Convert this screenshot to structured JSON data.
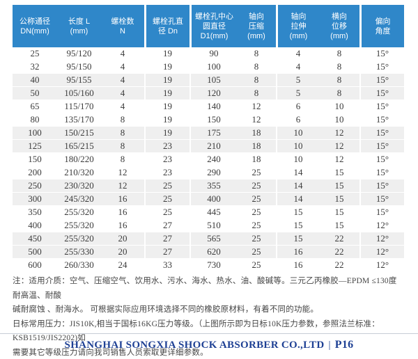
{
  "colors": {
    "header_bg": "#2F87C9",
    "alt_row": "#EFEFEF",
    "footer_text": "#1E4094",
    "footer_line": "#C6CCD6"
  },
  "table": {
    "headers": [
      {
        "id": "nominal-diameter",
        "lines": [
          "公称通径",
          "DN(mm)"
        ]
      },
      {
        "id": "length",
        "lines": [
          "长度 L",
          "(mm)"
        ]
      },
      {
        "id": "bolt-count",
        "lines": [
          "螺栓数",
          "N"
        ]
      },
      {
        "id": "bolt-hole-diameter",
        "lines": [
          "螺栓孔直",
          "径 Dn"
        ]
      },
      {
        "id": "bolt-circle-diameter",
        "lines": [
          "螺栓孔中心",
          "圆直径",
          "D1(mm)"
        ]
      },
      {
        "id": "axial-compression",
        "lines": [
          "轴向",
          "压缩",
          "(mm)"
        ]
      },
      {
        "id": "axial-extension",
        "lines": [
          "轴向",
          "拉伸",
          "(mm)"
        ]
      },
      {
        "id": "lateral-displacement",
        "lines": [
          "横向",
          "位移",
          "(mm)"
        ]
      },
      {
        "id": "deflection-angle",
        "lines": [
          "偏向",
          "角度"
        ]
      }
    ],
    "rows": [
      [
        "25",
        "95/120",
        "4",
        "19",
        "90",
        "8",
        "4",
        "8",
        "15°"
      ],
      [
        "32",
        "95/150",
        "4",
        "19",
        "100",
        "8",
        "4",
        "8",
        "15°"
      ],
      [
        "40",
        "95/155",
        "4",
        "19",
        "105",
        "8",
        "5",
        "8",
        "15°"
      ],
      [
        "50",
        "105/160",
        "4",
        "19",
        "120",
        "8",
        "5",
        "8",
        "15°"
      ],
      [
        "65",
        "115/170",
        "4",
        "19",
        "140",
        "12",
        "6",
        "10",
        "15°"
      ],
      [
        "80",
        "135/170",
        "8",
        "19",
        "150",
        "12",
        "6",
        "10",
        "15°"
      ],
      [
        "100",
        "150/215",
        "8",
        "19",
        "175",
        "18",
        "10",
        "12",
        "15°"
      ],
      [
        "125",
        "165/215",
        "8",
        "23",
        "210",
        "18",
        "10",
        "12",
        "15°"
      ],
      [
        "150",
        "180/220",
        "8",
        "23",
        "240",
        "18",
        "10",
        "12",
        "15°"
      ],
      [
        "200",
        "210/320",
        "12",
        "23",
        "290",
        "25",
        "14",
        "15",
        "15°"
      ],
      [
        "250",
        "230/320",
        "12",
        "25",
        "355",
        "25",
        "14",
        "15",
        "15°"
      ],
      [
        "300",
        "245/320",
        "16",
        "25",
        "400",
        "25",
        "14",
        "15",
        "15°"
      ],
      [
        "350",
        "255/320",
        "16",
        "25",
        "445",
        "25",
        "15",
        "15",
        "15°"
      ],
      [
        "400",
        "255/320",
        "16",
        "27",
        "510",
        "25",
        "15",
        "15",
        "12°"
      ],
      [
        "450",
        "255/320",
        "20",
        "27",
        "565",
        "25",
        "15",
        "22",
        "12°"
      ],
      [
        "500",
        "255/330",
        "20",
        "27",
        "620",
        "25",
        "16",
        "22",
        "12°"
      ],
      [
        "600",
        "260/330",
        "24",
        "33",
        "730",
        "25",
        "16",
        "22",
        "12°"
      ]
    ]
  },
  "notes": {
    "lines": [
      "注：适用介质：空气、压缩空气、饮用水、污水、海水、热水、油、酸碱等。三元乙丙橡胶—EPDM ≤130度 耐高温、耐酸",
      "碱耐腐蚀 、耐海水。 可根据实际应用环境选择不同的橡胶原材料，有着不同的功能。",
      "日标常用压力：JIS10K,相当于国标16KG压力等级。（上图所示即为日标10K压力参数，参照法兰标准：KSB1519/JIS2202)如",
      "需要其它等级压力请向我司销售人员索取更详细参数。"
    ]
  },
  "footer": {
    "company": "SHANGHAI SONGXIA SHOCK ABSORBER CO.,LTD",
    "separator": "|",
    "page": "P16"
  }
}
